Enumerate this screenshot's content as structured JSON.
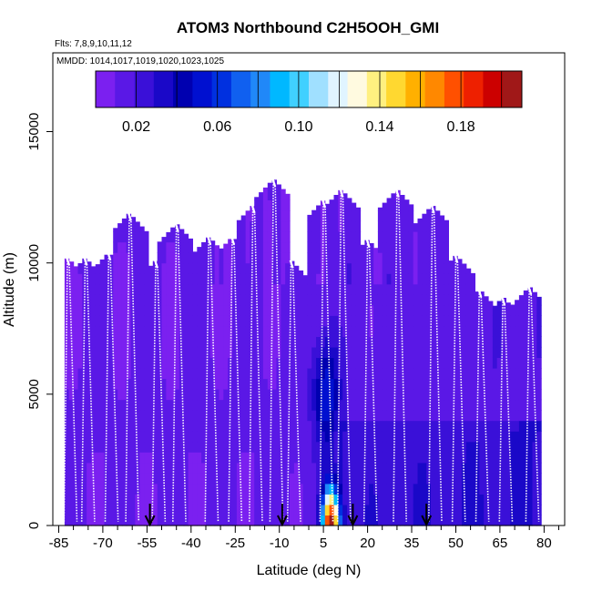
{
  "chart_data": {
    "type": "heatmap",
    "title": "ATOM3 Northbound C2H5OOH_GMI",
    "flights_label": "Flts: 7,8,9,10,11,12",
    "dates_label": "MMDD: 1014,1017,1019,1020,1023,1025",
    "xlabel": "Latitude (deg N)",
    "ylabel": "Altitude (m)",
    "xlim": [
      -87,
      87
    ],
    "ylim": [
      0,
      18000
    ],
    "x_ticks": [
      -85,
      -70,
      -55,
      -40,
      -25,
      -10,
      5,
      20,
      35,
      50,
      65,
      80
    ],
    "x_tick_labels": [
      "-85",
      "-70",
      "-55",
      "-40",
      "-25",
      "-10",
      "5",
      "20",
      "35",
      "50",
      "65",
      "80"
    ],
    "y_ticks": [
      0,
      5000,
      10000,
      15000
    ],
    "y_tick_labels": [
      "0",
      "5000",
      "10000",
      "15000"
    ],
    "colorbar": {
      "range": [
        0,
        0.21
      ],
      "tick_values": [
        0.02,
        0.06,
        0.1,
        0.14,
        0.18
      ],
      "tick_labels": [
        "0.02",
        "0.06",
        "0.10",
        "0.14",
        "0.18"
      ],
      "colors": [
        "#7b20f0",
        "#5a18e6",
        "#3a10d8",
        "#1a08c8",
        "#0000b0",
        "#0010d0",
        "#0030e0",
        "#1060f0",
        "#2088f8",
        "#00b8ff",
        "#40d0ff",
        "#a0e0ff",
        "#e0f4ff",
        "#fffae0",
        "#fff080",
        "#ffd830",
        "#ffb000",
        "#ff8800",
        "#ff5000",
        "#ee2000",
        "#cc0000",
        "#a01818"
      ]
    },
    "flight_tops": [
      {
        "lat": -82,
        "alt": 10200
      },
      {
        "lat": -76,
        "alt": 10200
      },
      {
        "lat": -68,
        "alt": 10400
      },
      {
        "lat": -61,
        "alt": 11900
      },
      {
        "lat": -52,
        "alt": 10100
      },
      {
        "lat": -45,
        "alt": 11500
      },
      {
        "lat": -34,
        "alt": 11000
      },
      {
        "lat": -26,
        "alt": 11000
      },
      {
        "lat": -19,
        "alt": 12200
      },
      {
        "lat": -12,
        "alt": 13200
      },
      {
        "lat": -6,
        "alt": 10100
      },
      {
        "lat": 5,
        "alt": 12400
      },
      {
        "lat": 11,
        "alt": 12800
      },
      {
        "lat": 20,
        "alt": 10900
      },
      {
        "lat": 30,
        "alt": 12800
      },
      {
        "lat": 42,
        "alt": 12200
      },
      {
        "lat": 50,
        "alt": 10300
      },
      {
        "lat": 58,
        "alt": 9000
      },
      {
        "lat": 66,
        "alt": 8700
      },
      {
        "lat": 75,
        "alt": 9100
      }
    ],
    "markers_lat": [
      -54,
      -9,
      15,
      40
    ]
  }
}
